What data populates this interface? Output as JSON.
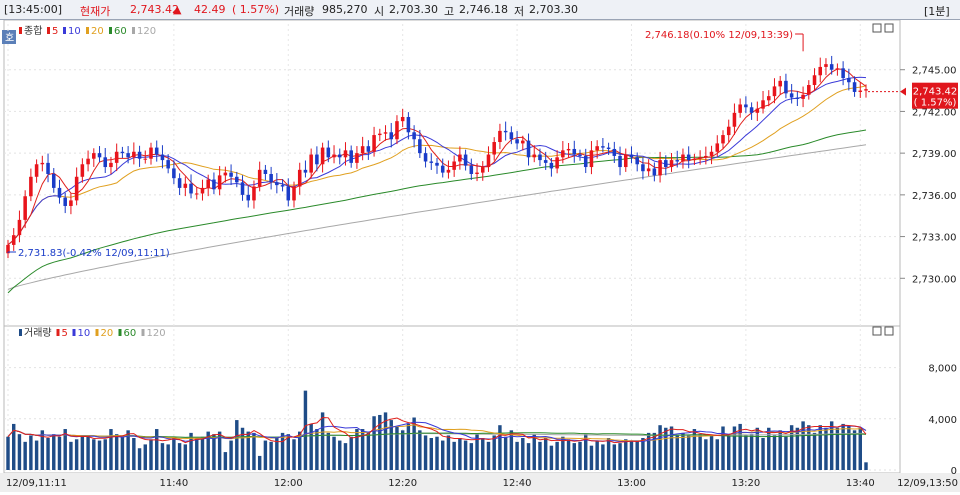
{
  "header": {
    "time": "[13:45:00]",
    "price_label": "현재가",
    "price": "2,743.42",
    "change_arrow": "▲",
    "change": "42.49",
    "change_pct": "( 1.57%)",
    "volume_label": "거래량",
    "volume": "985,270",
    "open_label": "시",
    "open": "2,703.30",
    "high_label": "고",
    "high": "2,746.18",
    "low_label": "저",
    "low": "2,703.30",
    "interval": "[1분]"
  },
  "chart_data": [
    {
      "type": "candlestick",
      "legend": [
        "종합",
        "5",
        "10",
        "20",
        "60",
        "120"
      ],
      "colors": {
        "up": "#e8141b",
        "down": "#1a3cc8",
        "ma5": "#e0201b",
        "ma10": "#3a3ad8",
        "ma20": "#e0a020",
        "ma60": "#2a8a2a",
        "ma120": "#a8a8a8"
      },
      "ylim": [
        2727.0,
        2748.0
      ],
      "y_ticks": [
        2730.0,
        2733.0,
        2736.0,
        2739.0,
        2742.0,
        2745.0
      ],
      "y_tick_labels": [
        "2,730.00",
        "2,733.00",
        "2,736.00",
        "2,739.00",
        "2,742.00",
        "2,745.00"
      ],
      "current_price_label": "2,743.42",
      "current_change_label": "( 1.57%)",
      "annotations": [
        {
          "text": "2,746.18(0.10% 12/09,13:39)",
          "price": 2746.18,
          "kind": "high"
        },
        {
          "text": "2,731.83(-0.42% 12/09,11:11)",
          "price": 2731.83,
          "kind": "low"
        }
      ],
      "close": [
        2732.4,
        2733.1,
        2734.2,
        2735.9,
        2737.3,
        2738.2,
        2738.3,
        2737.5,
        2736.5,
        2735.8,
        2735.2,
        2735.6,
        2737.3,
        2738.2,
        2738.6,
        2739.0,
        2738.7,
        2738.0,
        2738.3,
        2739.1,
        2739.0,
        2738.7,
        2739.1,
        2738.6,
        2738.6,
        2739.4,
        2738.9,
        2738.5,
        2737.9,
        2737.2,
        2736.5,
        2736.8,
        2736.1,
        2736.1,
        2736.5,
        2737.1,
        2736.4,
        2737.4,
        2737.6,
        2737.3,
        2736.9,
        2736.0,
        2735.6,
        2736.6,
        2737.8,
        2737.5,
        2736.9,
        2736.7,
        2736.6,
        2735.6,
        2736.6,
        2737.8,
        2737.6,
        2738.9,
        2738.2,
        2739.4,
        2738.7,
        2738.9,
        2738.7,
        2739.2,
        2738.3,
        2739.0,
        2739.5,
        2739.1,
        2740.3,
        2740.4,
        2740.5,
        2740.0,
        2741.3,
        2741.6,
        2740.5,
        2740.0,
        2739.0,
        2738.4,
        2738.3,
        2738.1,
        2737.6,
        2737.8,
        2738.4,
        2738.9,
        2738.1,
        2737.5,
        2737.6,
        2738.0,
        2738.9,
        2739.8,
        2740.6,
        2740.5,
        2740.0,
        2739.7,
        2739.9,
        2738.7,
        2738.9,
        2738.5,
        2738.3,
        2737.9,
        2738.7,
        2739.2,
        2739.3,
        2738.9,
        2738.8,
        2738.0,
        2739.2,
        2739.5,
        2739.4,
        2739.3,
        2738.8,
        2738.0,
        2738.9,
        2738.7,
        2738.2,
        2737.7,
        2737.9,
        2737.4,
        2738.5,
        2738.0,
        2738.5,
        2738.4,
        2738.9,
        2738.5,
        2738.6,
        2738.7,
        2738.8,
        2739.1,
        2739.7,
        2740.3,
        2740.9,
        2741.9,
        2742.5,
        2742.3,
        2741.9,
        2742.2,
        2742.8,
        2743.1,
        2743.8,
        2744.2,
        2743.3,
        2743.0,
        2742.9,
        2743.2,
        2743.9,
        2744.6,
        2745.2,
        2745.4,
        2745.0,
        2745.1,
        2744.4,
        2744.1,
        2743.4,
        2743.5,
        2743.6
      ],
      "volume_ylim": [
        0,
        10000
      ],
      "volume_ticks": [
        0,
        4000,
        8000
      ],
      "volume_tick_labels": [
        "0",
        "4,000",
        "8,000"
      ],
      "volume_legend": [
        "거래량",
        "5",
        "10",
        "20",
        "60",
        "120"
      ],
      "volume": [
        2600,
        3600,
        2800,
        2200,
        2700,
        2300,
        3100,
        2500,
        2800,
        2600,
        3200,
        2200,
        2400,
        2700,
        2600,
        2400,
        2300,
        2400,
        3200,
        2800,
        2600,
        3100,
        2500,
        1700,
        2000,
        2400,
        3200,
        2100,
        2000,
        2500,
        2100,
        2000,
        2900,
        2500,
        2600,
        3000,
        2800,
        3000,
        1400,
        2300,
        3900,
        3300,
        3000,
        2900,
        1100,
        2300,
        2200,
        2600,
        2900,
        2800,
        2400,
        3000,
        6200,
        3600,
        3200,
        4500,
        2900,
        2600,
        2300,
        2100,
        2600,
        3200,
        3200,
        3000,
        4200,
        4300,
        4500,
        3900,
        3400,
        3100,
        3600,
        4100,
        3100,
        2700,
        2500,
        2600,
        2300,
        2700,
        2200,
        2500,
        2300,
        2100,
        2800,
        2500,
        2200,
        2700,
        3500,
        2600,
        3100,
        2200,
        2500,
        2100,
        2800,
        2200,
        2500,
        1900,
        2200,
        2600,
        2400,
        2100,
        2200,
        2800,
        1900,
        2300,
        2000,
        2500,
        2000,
        2100,
        2400,
        2300,
        2300,
        2500,
        2900,
        2900,
        3500,
        3300,
        3400,
        2700,
        2900,
        2700,
        3200,
        2800,
        2400,
        2700,
        2400,
        3400,
        2800,
        3400,
        3600,
        2700,
        2800,
        3300,
        2500,
        3300,
        2700,
        3100,
        2600,
        3500,
        3300,
        3800,
        3500,
        2900,
        3500,
        3300,
        3800,
        3300,
        3600,
        3400,
        3100,
        3300,
        600
      ],
      "x_ticks": [
        {
          "index": 0,
          "label": "12/09,11:11"
        },
        {
          "index": 29,
          "label": "11:40"
        },
        {
          "index": 49,
          "label": "12:00"
        },
        {
          "index": 69,
          "label": "12:20"
        },
        {
          "index": 89,
          "label": "12:40"
        },
        {
          "index": 109,
          "label": "13:00"
        },
        {
          "index": 129,
          "label": "13:20"
        },
        {
          "index": 149,
          "label": "13:40"
        }
      ],
      "x_end_label": "12/09,13:50"
    }
  ]
}
